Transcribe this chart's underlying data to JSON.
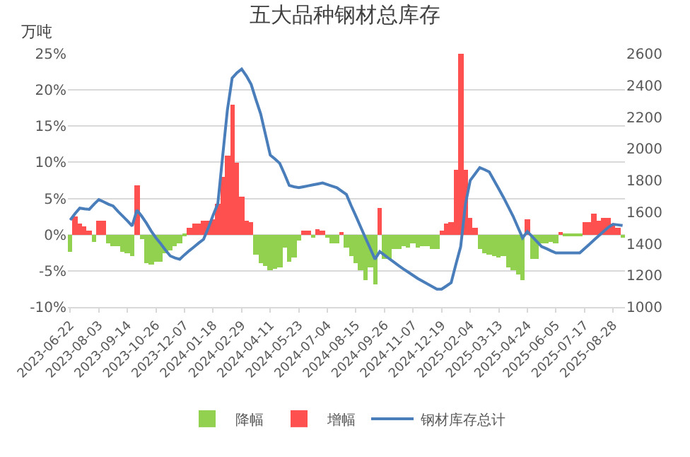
{
  "chart_data": {
    "type": "bar",
    "title": "五大品种钢材总库存",
    "ylabel": "万吨",
    "categories": [
      "2023-06-22",
      null,
      null,
      null,
      null,
      null,
      "2023-08-03",
      null,
      null,
      null,
      null,
      null,
      "2023-09-14",
      null,
      null,
      null,
      null,
      null,
      "2023-10-26",
      null,
      null,
      null,
      null,
      null,
      "2023-12-07",
      null,
      null,
      null,
      null,
      null,
      "2024-01-18",
      null,
      null,
      null,
      null,
      null,
      "2024-02-29",
      null,
      null,
      null,
      null,
      null,
      "2024-04-11",
      null,
      null,
      null,
      null,
      null,
      "2024-05-23",
      null,
      null,
      null,
      null,
      null,
      "2024-07-04",
      null,
      null,
      null,
      null,
      null,
      "2024-08-15",
      null,
      null,
      null,
      null,
      null,
      "2024-09-26",
      null,
      null,
      null,
      null,
      null,
      "2024-11-07",
      null,
      null,
      null,
      null,
      null,
      "2024-12-19",
      null,
      null,
      null,
      null,
      null,
      "2025-02-04",
      null,
      null,
      null,
      null,
      null,
      "2025-03-13",
      null,
      null,
      null,
      null,
      null,
      "2025-04-24",
      null,
      null,
      null,
      null,
      null,
      "2025-06-05",
      null,
      null,
      null,
      null,
      null,
      "2025-07-17",
      null,
      null,
      null,
      null,
      null,
      "2025-08-28",
      null,
      null
    ],
    "series": [
      {
        "name": "降幅",
        "color": "#92d050",
        "values": [
          -2.4,
          null,
          null,
          null,
          null,
          -1.0,
          null,
          null,
          -1.2,
          -1.5,
          -1.6,
          -2.3,
          -2.6,
          -2.9,
          null,
          -0.6,
          -4.0,
          -4.1,
          -3.8,
          -3.8,
          -2.5,
          -2.2,
          -1.5,
          -1.2,
          -0.3,
          null,
          null,
          null,
          null,
          null,
          null,
          null,
          null,
          null,
          null,
          null,
          null,
          null,
          null,
          -2.8,
          -4.0,
          -4.3,
          -5.0,
          -4.8,
          -4.6,
          -1.8,
          -3.8,
          -3.2,
          -0.8,
          null,
          null,
          -0.5,
          null,
          null,
          -0.5,
          -1.2,
          -1.2,
          null,
          -1.8,
          -3.0,
          -4.0,
          -5.0,
          -6.2,
          -4.5,
          -6.8,
          null,
          -3.3,
          -3.3,
          -2.0,
          -2.0,
          -1.5,
          -1.8,
          -1.2,
          -1.8,
          -1.5,
          -1.5,
          -2.0,
          -2.0,
          null,
          null,
          null,
          null,
          null,
          null,
          null,
          null,
          -2.0,
          -2.5,
          -2.8,
          -3.0,
          -3.2,
          -3.0,
          -4.5,
          -5.0,
          -5.5,
          -6.3,
          null,
          -3.3,
          -3.3,
          -1.2,
          -1.2,
          -1.0,
          -1.2,
          null,
          -0.3,
          -0.3,
          -0.3,
          -0.3,
          null,
          null,
          null,
          null,
          null,
          null,
          null,
          null,
          -0.5
        ]
      },
      {
        "name": "增幅",
        "color": "#ff5050",
        "values": [
          null,
          2.5,
          1.5,
          1.2,
          0.6,
          null,
          2.0,
          2.0,
          null,
          null,
          null,
          null,
          null,
          null,
          6.8,
          null,
          null,
          null,
          null,
          null,
          null,
          null,
          null,
          null,
          null,
          1.0,
          1.5,
          1.5,
          2.0,
          2.0,
          2.2,
          4.3,
          7.9,
          11.0,
          18.0,
          10.0,
          5.3,
          2.0,
          1.8,
          null,
          null,
          null,
          null,
          null,
          null,
          null,
          null,
          null,
          null,
          0.5,
          0.5,
          null,
          0.7,
          0.6,
          null,
          null,
          null,
          0.3,
          null,
          null,
          null,
          null,
          null,
          null,
          null,
          3.7,
          null,
          null,
          null,
          null,
          null,
          null,
          null,
          null,
          null,
          null,
          null,
          null,
          0.6,
          1.5,
          1.8,
          8.9,
          25.0,
          8.9,
          2.4,
          0.9,
          null,
          null,
          null,
          null,
          null,
          null,
          null,
          null,
          null,
          null,
          2.1,
          null,
          null,
          null,
          null,
          null,
          null,
          0.4,
          null,
          null,
          null,
          null,
          1.8,
          1.8,
          3.0,
          2.0,
          2.4,
          2.4,
          1.5,
          1.0,
          null
        ]
      },
      {
        "name": "钢材库存总计",
        "type": "line",
        "axis": "y2",
        "color": "#4a7ebb",
        "values": [
          1550,
          1590,
          1625,
          1620,
          1617,
          1650,
          1679,
          1665,
          1650,
          1638,
          1605,
          1575,
          1545,
          1512,
          1612,
          1574,
          1530,
          1480,
          1437,
          1400,
          1360,
          1323,
          1310,
          1302,
          1330,
          1356,
          1380,
          1405,
          1428,
          1500,
          1580,
          1654,
          1950,
          2244,
          2446,
          2480,
          2503,
          2460,
          2406,
          2310,
          2220,
          2090,
          1960,
          1935,
          1908,
          1840,
          1768,
          1760,
          1754,
          1760,
          1766,
          1772,
          1778,
          1784,
          1774,
          1764,
          1754,
          1732,
          1711,
          1640,
          1574,
          1505,
          1437,
          1370,
          1302,
          1350,
          1328,
          1305,
          1283,
          1261,
          1240,
          1220,
          1200,
          1180,
          1163,
          1146,
          1130,
          1113,
          1113,
          1133,
          1154,
          1270,
          1382,
          1650,
          1800,
          1840,
          1881,
          1868,
          1854,
          1800,
          1746,
          1692,
          1633,
          1574,
          1505,
          1437,
          1477,
          1445,
          1414,
          1382,
          1369,
          1355,
          1342,
          1342,
          1342,
          1342,
          1342,
          1342,
          1369,
          1396,
          1423,
          1450,
          1477,
          1504,
          1523,
          1519,
          1515
        ]
      }
    ],
    "ylim": [
      -10,
      25
    ],
    "yticks": [
      {
        "value": -10,
        "label": "-10%"
      },
      {
        "value": -5,
        "label": "-5%"
      },
      {
        "value": 0,
        "label": "0%"
      },
      {
        "value": 5,
        "label": "5%"
      },
      {
        "value": 10,
        "label": "10%"
      },
      {
        "value": 15,
        "label": "15%"
      },
      {
        "value": 20,
        "label": "20%"
      },
      {
        "value": 25,
        "label": "25%"
      }
    ],
    "y2lim": [
      1000,
      2600
    ],
    "y2ticks": [
      1000,
      1200,
      1400,
      1600,
      1800,
      2000,
      2200,
      2400,
      2600
    ],
    "grid": "y",
    "legend": "bottom",
    "marker": "none",
    "line_style": "solid"
  }
}
